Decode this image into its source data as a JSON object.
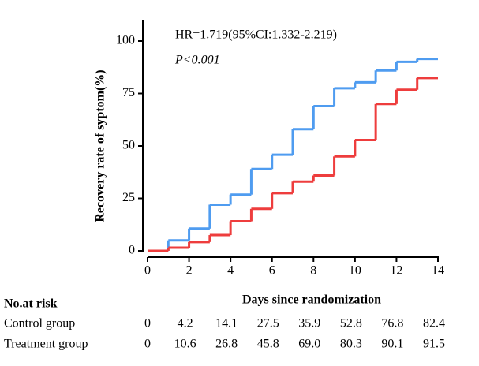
{
  "chart_data": {
    "type": "step",
    "annotations": [
      "HR=1.719(95%CI:1.332-2.219)",
      "P<0.001"
    ],
    "xlabel": "Days since randomization",
    "ylabel": "Recovery rate of syptom(%)",
    "x": [
      0,
      1,
      2,
      3,
      4,
      5,
      6,
      7,
      8,
      9,
      10,
      11,
      12,
      13,
      14
    ],
    "series": [
      {
        "name": "Treatment group",
        "color": "#4f9cf0",
        "values": [
          0,
          5,
          10.6,
          22,
          26.8,
          39,
          45.8,
          58,
          69,
          77.5,
          80.3,
          86,
          90.1,
          91.5,
          91.5
        ]
      },
      {
        "name": "Control group",
        "color": "#ee3d3d",
        "values": [
          0,
          1.5,
          4.2,
          7.5,
          14.1,
          20,
          27.5,
          33,
          35.9,
          45,
          52.8,
          70,
          76.8,
          82.4,
          82.4
        ]
      }
    ],
    "xlim": [
      0,
      14
    ],
    "xticks": [
      0,
      2,
      4,
      6,
      8,
      10,
      12,
      14
    ],
    "ylim": [
      0,
      110
    ],
    "yticks": [
      0,
      25,
      50,
      75,
      100
    ],
    "risk_table": {
      "title": "No.at risk",
      "rows": [
        {
          "label": "Control group",
          "values": [
            "0",
            "4.2",
            "14.1",
            "27.5",
            "35.9",
            "52.8",
            "76.8",
            "82.4"
          ]
        },
        {
          "label": "Treatment group",
          "values": [
            "0",
            "10.6",
            "26.8",
            "45.8",
            "69.0",
            "80.3",
            "90.1",
            "91.5"
          ]
        }
      ]
    }
  }
}
